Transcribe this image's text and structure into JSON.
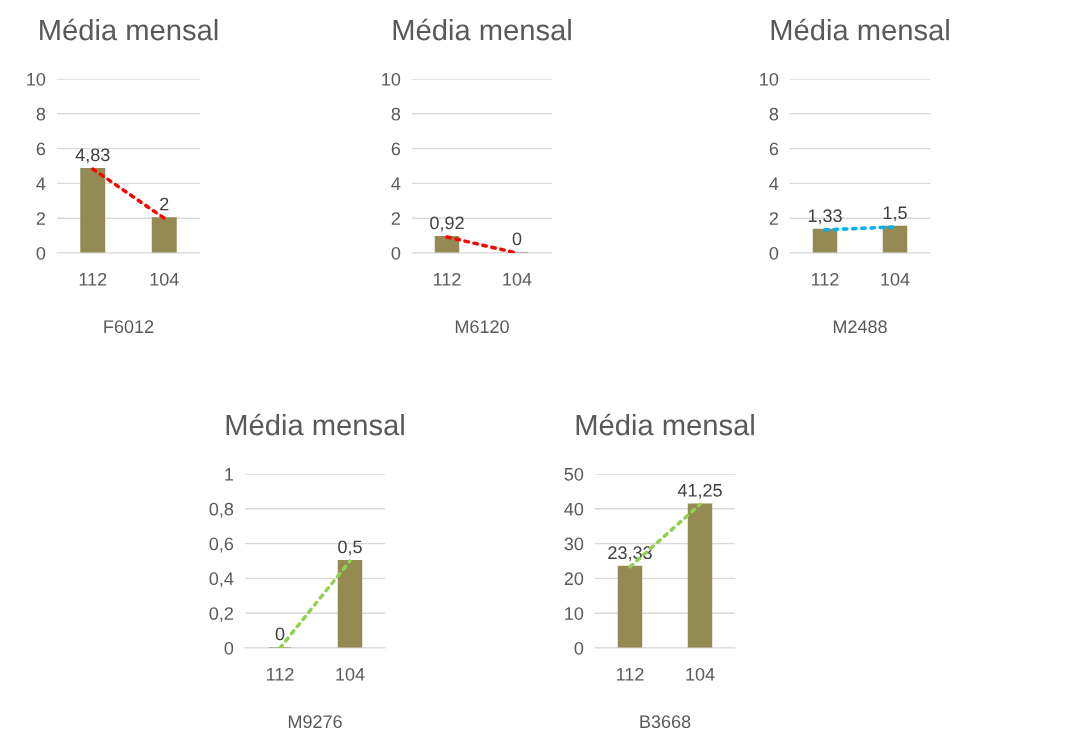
{
  "chart_data": [
    {
      "type": "bar",
      "title": "Média mensal",
      "xlabel": "F6012",
      "categories": [
        "112",
        "104"
      ],
      "ylim": [
        0,
        10
      ],
      "yticks": [
        0,
        2,
        4,
        6,
        8,
        10
      ],
      "grid": "y",
      "legend": false,
      "series": [
        {
          "color": "#948a54",
          "values": [
            4.83,
            2
          ],
          "value_labels": [
            "4,83",
            "2"
          ]
        },
        {
          "type": "line",
          "color": "#ff0000",
          "line_style": "dotted",
          "marker": "none",
          "x": [
            "112",
            "104"
          ],
          "values": [
            4.83,
            2
          ]
        }
      ]
    },
    {
      "type": "bar",
      "title": "Média mensal",
      "xlabel": "M6120",
      "categories": [
        "112",
        "104"
      ],
      "ylim": [
        0,
        10
      ],
      "yticks": [
        0,
        2,
        4,
        6,
        8,
        10
      ],
      "grid": "y",
      "legend": false,
      "series": [
        {
          "color": "#948a54",
          "values": [
            0.92,
            0
          ],
          "value_labels": [
            "0,92",
            "0"
          ]
        },
        {
          "type": "line",
          "color": "#ff0000",
          "line_style": "dotted",
          "marker": "none",
          "x": [
            "112",
            "104"
          ],
          "values": [
            0.92,
            0
          ]
        }
      ]
    },
    {
      "type": "bar",
      "title": "Média mensal",
      "xlabel": "M2488",
      "categories": [
        "112",
        "104"
      ],
      "ylim": [
        0,
        10
      ],
      "yticks": [
        0,
        2,
        4,
        6,
        8,
        10
      ],
      "grid": "y",
      "legend": false,
      "series": [
        {
          "color": "#948a54",
          "values": [
            1.33,
            1.5
          ],
          "value_labels": [
            "1,33",
            "1,5"
          ]
        },
        {
          "type": "line",
          "color": "#00b0f0",
          "line_style": "dotted",
          "marker": "none",
          "x": [
            "112",
            "104"
          ],
          "values": [
            1.33,
            1.5
          ]
        }
      ]
    },
    {
      "type": "bar",
      "title": "Média mensal",
      "xlabel": "M9276",
      "categories": [
        "112",
        "104"
      ],
      "ylim": [
        0,
        1
      ],
      "yticks": [
        0,
        {
          "value": 0.2,
          "label": "0,2"
        },
        {
          "value": 0.4,
          "label": "0,4"
        },
        {
          "value": 0.6,
          "label": "0,6"
        },
        {
          "value": 0.8,
          "label": "0,8"
        },
        1
      ],
      "grid": "y",
      "legend": false,
      "series": [
        {
          "color": "#948a54",
          "values": [
            0,
            0.5
          ],
          "value_labels": [
            "0",
            "0,5"
          ]
        },
        {
          "type": "line",
          "color": "#92d050",
          "line_style": "dotted",
          "marker": "none",
          "x": [
            "112",
            "104"
          ],
          "values": [
            0,
            0.5
          ]
        }
      ]
    },
    {
      "type": "bar",
      "title": "Média mensal",
      "xlabel": "B3668",
      "categories": [
        "112",
        "104"
      ],
      "ylim": [
        0,
        50
      ],
      "yticks": [
        0,
        10,
        20,
        30,
        40,
        50
      ],
      "grid": "y",
      "legend": false,
      "series": [
        {
          "color": "#948a54",
          "values": [
            23.33,
            41.25
          ],
          "value_labels": [
            "23,33",
            "41,25"
          ]
        },
        {
          "type": "line",
          "color": "#92d050",
          "line_style": "dotted",
          "marker": "none",
          "x": [
            "112",
            "104"
          ],
          "values": [
            23.33,
            41.25
          ]
        }
      ]
    }
  ]
}
